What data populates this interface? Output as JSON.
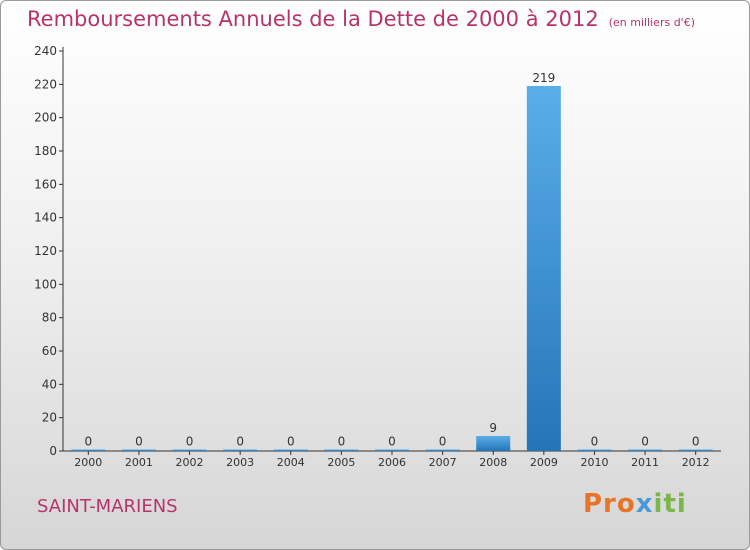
{
  "header": {
    "title": "Remboursements Annuels de la Dette de 2000 à 2012",
    "unit": "(en milliers d'€)"
  },
  "footer": {
    "commune": "SAINT-MARIENS",
    "logo_p1": "Pro",
    "logo_p2": "x",
    "logo_p3": "iti"
  },
  "colors": {
    "title": "#b8336a",
    "bar_top": "#5aaee8",
    "bar_bottom": "#2475b8",
    "axis": "#333333"
  },
  "chart_data": {
    "type": "bar",
    "title": "Remboursements Annuels de la Dette de 2000 à 2012",
    "subtitle": "(en milliers d'€)",
    "xlabel": "",
    "ylabel": "",
    "categories": [
      "2000",
      "2001",
      "2002",
      "2003",
      "2004",
      "2005",
      "2006",
      "2007",
      "2008",
      "2009",
      "2010",
      "2011",
      "2012"
    ],
    "values": [
      0,
      0,
      0,
      0,
      0,
      0,
      0,
      0,
      9,
      219,
      0,
      0,
      0
    ],
    "ylim": [
      0,
      240
    ],
    "yticks": [
      0,
      20,
      40,
      60,
      80,
      100,
      120,
      140,
      160,
      180,
      200,
      220,
      240
    ],
    "data_labels": true,
    "grid": false
  }
}
